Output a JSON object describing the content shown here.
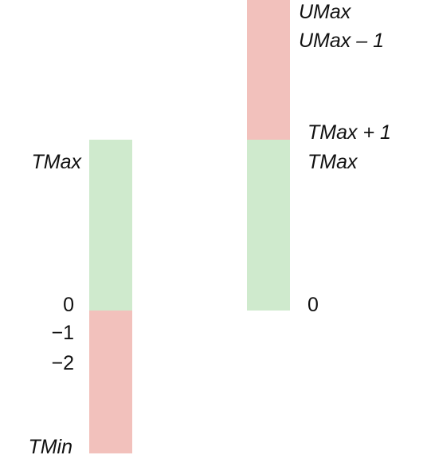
{
  "colors": {
    "non_negative": "#cfeacd",
    "negative_or_overflow": "#f2c1bc"
  },
  "signed_bar": {
    "top_label": "TMax",
    "zero_label": "0",
    "minus_one_label": "−1",
    "minus_two_label": "−2",
    "bottom_label": "TMin"
  },
  "unsigned_bar": {
    "top_label": "UMax",
    "top_minus_one_label": "UMax – 1",
    "tmax_plus_one_label": "TMax  + 1",
    "tmax_label": "TMax",
    "zero_label": "0"
  }
}
